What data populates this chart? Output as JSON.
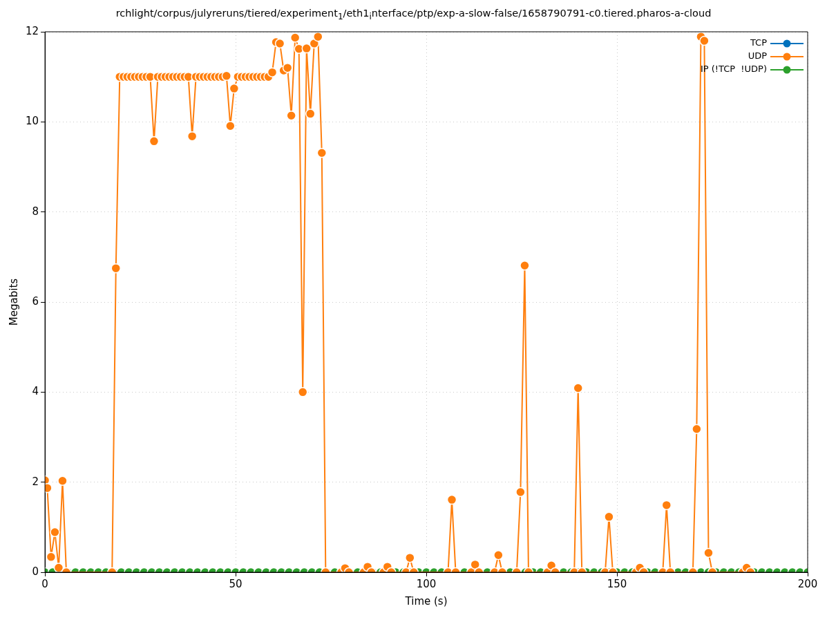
{
  "chart_data": {
    "type": "line",
    "title": "rchlight/corpus/julyreruns/tiered/experiment$_{1}$/eth1$_{i}$nterface/ptp/exp-a-slow-false/1658790791-c0.tiered.pharos-a-cloud",
    "xlabel": "Time (s)",
    "ylabel": "Megabits",
    "xlim": [
      0,
      200
    ],
    "xticks": [
      0,
      50,
      100,
      150,
      200
    ],
    "ylim": [
      0,
      12
    ],
    "yticks": [
      0,
      2,
      4,
      6,
      8,
      10,
      12
    ],
    "grid": true,
    "legend": "top right",
    "marker": "circle",
    "line_style": "solid",
    "series": [
      {
        "name": "TCP",
        "color": "#0072bd"
      },
      {
        "name": "UDP",
        "color": "#ff7f0e",
        "x": [
          0,
          0.6,
          1.6,
          2.6,
          3.6,
          4.6,
          5.6,
          17.6,
          18.6,
          19.6,
          20.6,
          21.6,
          22.6,
          23.6,
          24.6,
          25.6,
          26.6,
          27.6,
          28.6,
          29.6,
          30.6,
          31.6,
          32.6,
          33.6,
          34.6,
          35.6,
          36.6,
          37.6,
          38.6,
          39.6,
          40.6,
          41.6,
          42.6,
          43.6,
          44.6,
          45.6,
          46.6,
          47.6,
          48.6,
          49.6,
          50.6,
          51.6,
          52.6,
          53.6,
          54.6,
          55.6,
          56.6,
          57.6,
          58.6,
          59.6,
          60.6,
          61.6,
          62.6,
          63.6,
          64.6,
          65.6,
          66.6,
          67.6,
          68.6,
          69.6,
          70.6,
          71.6,
          72.6,
          73.6,
          77.7,
          78.7,
          79.7,
          83.6,
          84.6,
          85.6,
          88.8,
          89.8,
          90.8,
          94.7,
          95.7,
          96.7,
          105.7,
          106.7,
          107.7,
          111.8,
          112.8,
          113.8,
          117.9,
          118.9,
          119.9,
          123.7,
          124.7,
          125.8,
          126.8,
          131.8,
          132.8,
          133.8,
          138.8,
          139.8,
          140.8,
          146.9,
          147.9,
          148.9,
          155,
          156,
          157,
          162,
          163,
          164,
          169.9,
          170.9,
          172,
          172.9,
          174,
          175,
          183,
          184,
          185
        ],
        "values": [
          2.04,
          1.87,
          0.34,
          0.89,
          0.1,
          2.03,
          0,
          0,
          6.75,
          11,
          11,
          11,
          11,
          11,
          11,
          11,
          11,
          11,
          9.57,
          11,
          11,
          11,
          11,
          11,
          11,
          11,
          11,
          11,
          9.68,
          11,
          11,
          11,
          11,
          11,
          11,
          11,
          11,
          11.02,
          9.91,
          10.74,
          11,
          11,
          11,
          11,
          11,
          11,
          11,
          11,
          11,
          11.1,
          11.77,
          11.74,
          11.14,
          11.2,
          10.14,
          11.87,
          11.62,
          4,
          11.63,
          10.18,
          11.74,
          11.89,
          9.31,
          0,
          0,
          0.09,
          0,
          0,
          0.12,
          0,
          0,
          0.12,
          0,
          0,
          0.32,
          0,
          0,
          1.61,
          0,
          0,
          0.17,
          0,
          0,
          0.38,
          0,
          0,
          1.78,
          6.81,
          0,
          0,
          0.15,
          0,
          0,
          4.09,
          0,
          0,
          1.23,
          0,
          0,
          0.1,
          0,
          0,
          1.49,
          0,
          0,
          3.18,
          11.89,
          11.8,
          0.43,
          0,
          0,
          0.1,
          0
        ]
      },
      {
        "name": "IP (!TCP  !UDP)",
        "color": "#2ca02c",
        "x": [
          0,
          2,
          4,
          6,
          8,
          10,
          12,
          14,
          16,
          18,
          20,
          22,
          24,
          26,
          28,
          30,
          32,
          34,
          36,
          38,
          40,
          42,
          44,
          46,
          48,
          50,
          52,
          54,
          56,
          58,
          60,
          62,
          64,
          66,
          68,
          70,
          72,
          74,
          76,
          78,
          80,
          82,
          84,
          86,
          88,
          90,
          92,
          94,
          96,
          98,
          100,
          102,
          104,
          106,
          108,
          110,
          112,
          114,
          116,
          118,
          120,
          122,
          124,
          126,
          128,
          130,
          132,
          134,
          136,
          138,
          140,
          142,
          144,
          146,
          148,
          150,
          152,
          154,
          156,
          158,
          160,
          162,
          164,
          166,
          168,
          170,
          172,
          174,
          176,
          178,
          180,
          182,
          184,
          186,
          188,
          190,
          192,
          194,
          196,
          198,
          200
        ],
        "values": [
          0,
          0,
          0,
          0,
          0,
          0,
          0,
          0,
          0,
          0,
          0,
          0,
          0,
          0,
          0,
          0,
          0,
          0,
          0,
          0,
          0,
          0,
          0,
          0,
          0,
          0,
          0,
          0,
          0,
          0,
          0,
          0,
          0,
          0,
          0,
          0,
          0,
          0,
          0,
          0,
          0,
          0,
          0,
          0,
          0,
          0,
          0,
          0,
          0,
          0,
          0,
          0,
          0,
          0,
          0,
          0,
          0,
          0,
          0,
          0,
          0,
          0,
          0,
          0,
          0,
          0,
          0,
          0,
          0,
          0,
          0,
          0,
          0,
          0,
          0,
          0,
          0,
          0,
          0,
          0,
          0,
          0,
          0,
          0,
          0,
          0,
          0,
          0,
          0,
          0,
          0,
          0,
          0,
          0,
          0,
          0,
          0,
          0,
          0,
          0,
          0
        ]
      }
    ]
  }
}
